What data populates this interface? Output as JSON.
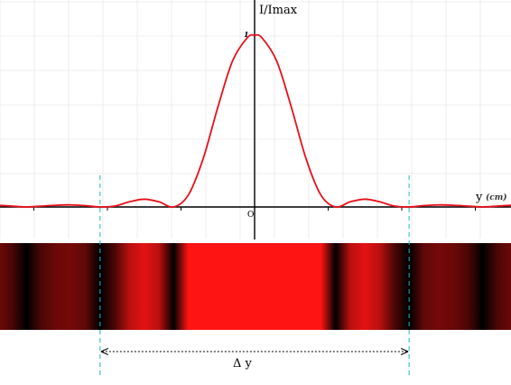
{
  "chart_data": {
    "type": "line",
    "title": "",
    "ylabel": "I/Imax",
    "xlabel": "y",
    "xunit": "(cm)",
    "origin_label": "O",
    "y_tick_labels": [
      "1"
    ],
    "xlim": [
      -3.5,
      3.5
    ],
    "ylim": [
      -0.18,
      1.2
    ],
    "grid": true,
    "series": [
      {
        "color": "#e8101c",
        "x": [
          -3.5,
          -3.3,
          -3.1,
          -2.9,
          -2.7,
          -2.5,
          -2.3,
          -2.1,
          -1.9,
          -1.7,
          -1.5,
          -1.3,
          -1.1,
          -0.9,
          -0.7,
          -0.5,
          -0.3,
          -0.1,
          0,
          0.1,
          0.3,
          0.5,
          0.7,
          0.9,
          1.1,
          1.3,
          1.5,
          1.7,
          1.9,
          2.1,
          2.3,
          2.5,
          2.7,
          2.9,
          3.1,
          3.3,
          3.5
        ],
        "y": [
          0.01,
          0.005,
          0.0,
          0.005,
          0.01,
          0.012,
          0.008,
          0.0,
          0.005,
          0.03,
          0.045,
          0.03,
          0.0,
          0.07,
          0.28,
          0.58,
          0.85,
          0.985,
          1.0,
          0.985,
          0.85,
          0.58,
          0.28,
          0.07,
          0.0,
          0.03,
          0.045,
          0.03,
          0.005,
          0.0,
          0.008,
          0.012,
          0.01,
          0.005,
          0.0,
          0.005,
          0.01
        ]
      }
    ],
    "fringe_color": "#ff1414",
    "marker_x": [
      -2.1,
      2.1
    ],
    "marker_color": "#20b4c8",
    "delta_label": "Δ y"
  }
}
